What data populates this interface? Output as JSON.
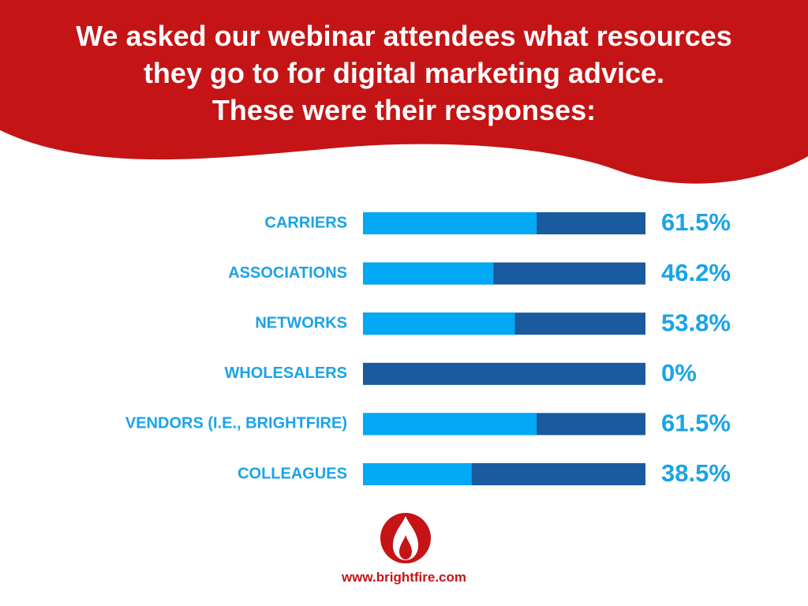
{
  "header": {
    "lines": [
      "We asked our webinar attendees what resources",
      "they go to for digital marketing advice.",
      "These were their responses:"
    ]
  },
  "colors": {
    "banner_red": "#c41416",
    "bar_light_blue": "#03a9f4",
    "bar_dark_blue": "#1a5a9f",
    "label_blue": "#1aa3e8",
    "text_white": "#ffffff",
    "brand_red": "#c41416"
  },
  "chart_data": {
    "type": "bar",
    "orientation": "horizontal",
    "stacked": true,
    "categories": [
      "CARRIERS",
      "ASSOCIATIONS",
      "NETWORKS",
      "WHOLESALERS",
      "VENDORS (I.E., BRIGHTFIRE)",
      "COLLEAGUES"
    ],
    "values": [
      61.5,
      46.2,
      53.8,
      0,
      61.5,
      38.5
    ],
    "value_labels": [
      "61.5%",
      "46.2%",
      "53.8%",
      "0%",
      "61.5%",
      "38.5%"
    ],
    "xlim": [
      0,
      100
    ],
    "grid": false,
    "legend": "none"
  },
  "footer": {
    "logo_icon": "flame-icon",
    "website": "www.brightfire.com"
  }
}
